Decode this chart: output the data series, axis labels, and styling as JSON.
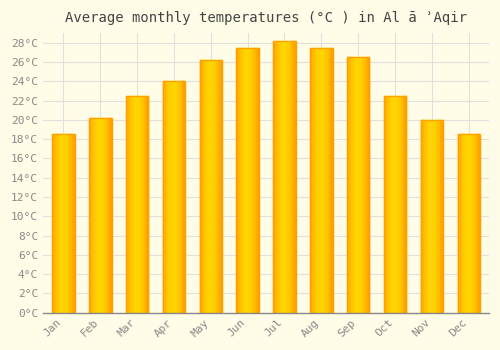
{
  "title": "Average monthly temperatures (°C ) in Al ā ʾAqir",
  "months": [
    "Jan",
    "Feb",
    "Mar",
    "Apr",
    "May",
    "Jun",
    "Jul",
    "Aug",
    "Sep",
    "Oct",
    "Nov",
    "Dec"
  ],
  "values": [
    18.5,
    20.2,
    22.5,
    24.0,
    26.2,
    27.5,
    28.2,
    27.5,
    26.5,
    22.5,
    20.0,
    18.5
  ],
  "bar_color_center": "#FFD54F",
  "bar_color_edge": "#FFA000",
  "background_color": "#FFFDE7",
  "grid_color": "#E0E0E0",
  "title_color": "#444444",
  "tick_color": "#888888",
  "axis_line_color": "#888888",
  "ylim": [
    0,
    29
  ],
  "ytick_max": 28,
  "ytick_step": 2,
  "title_fontsize": 10,
  "tick_fontsize": 8
}
